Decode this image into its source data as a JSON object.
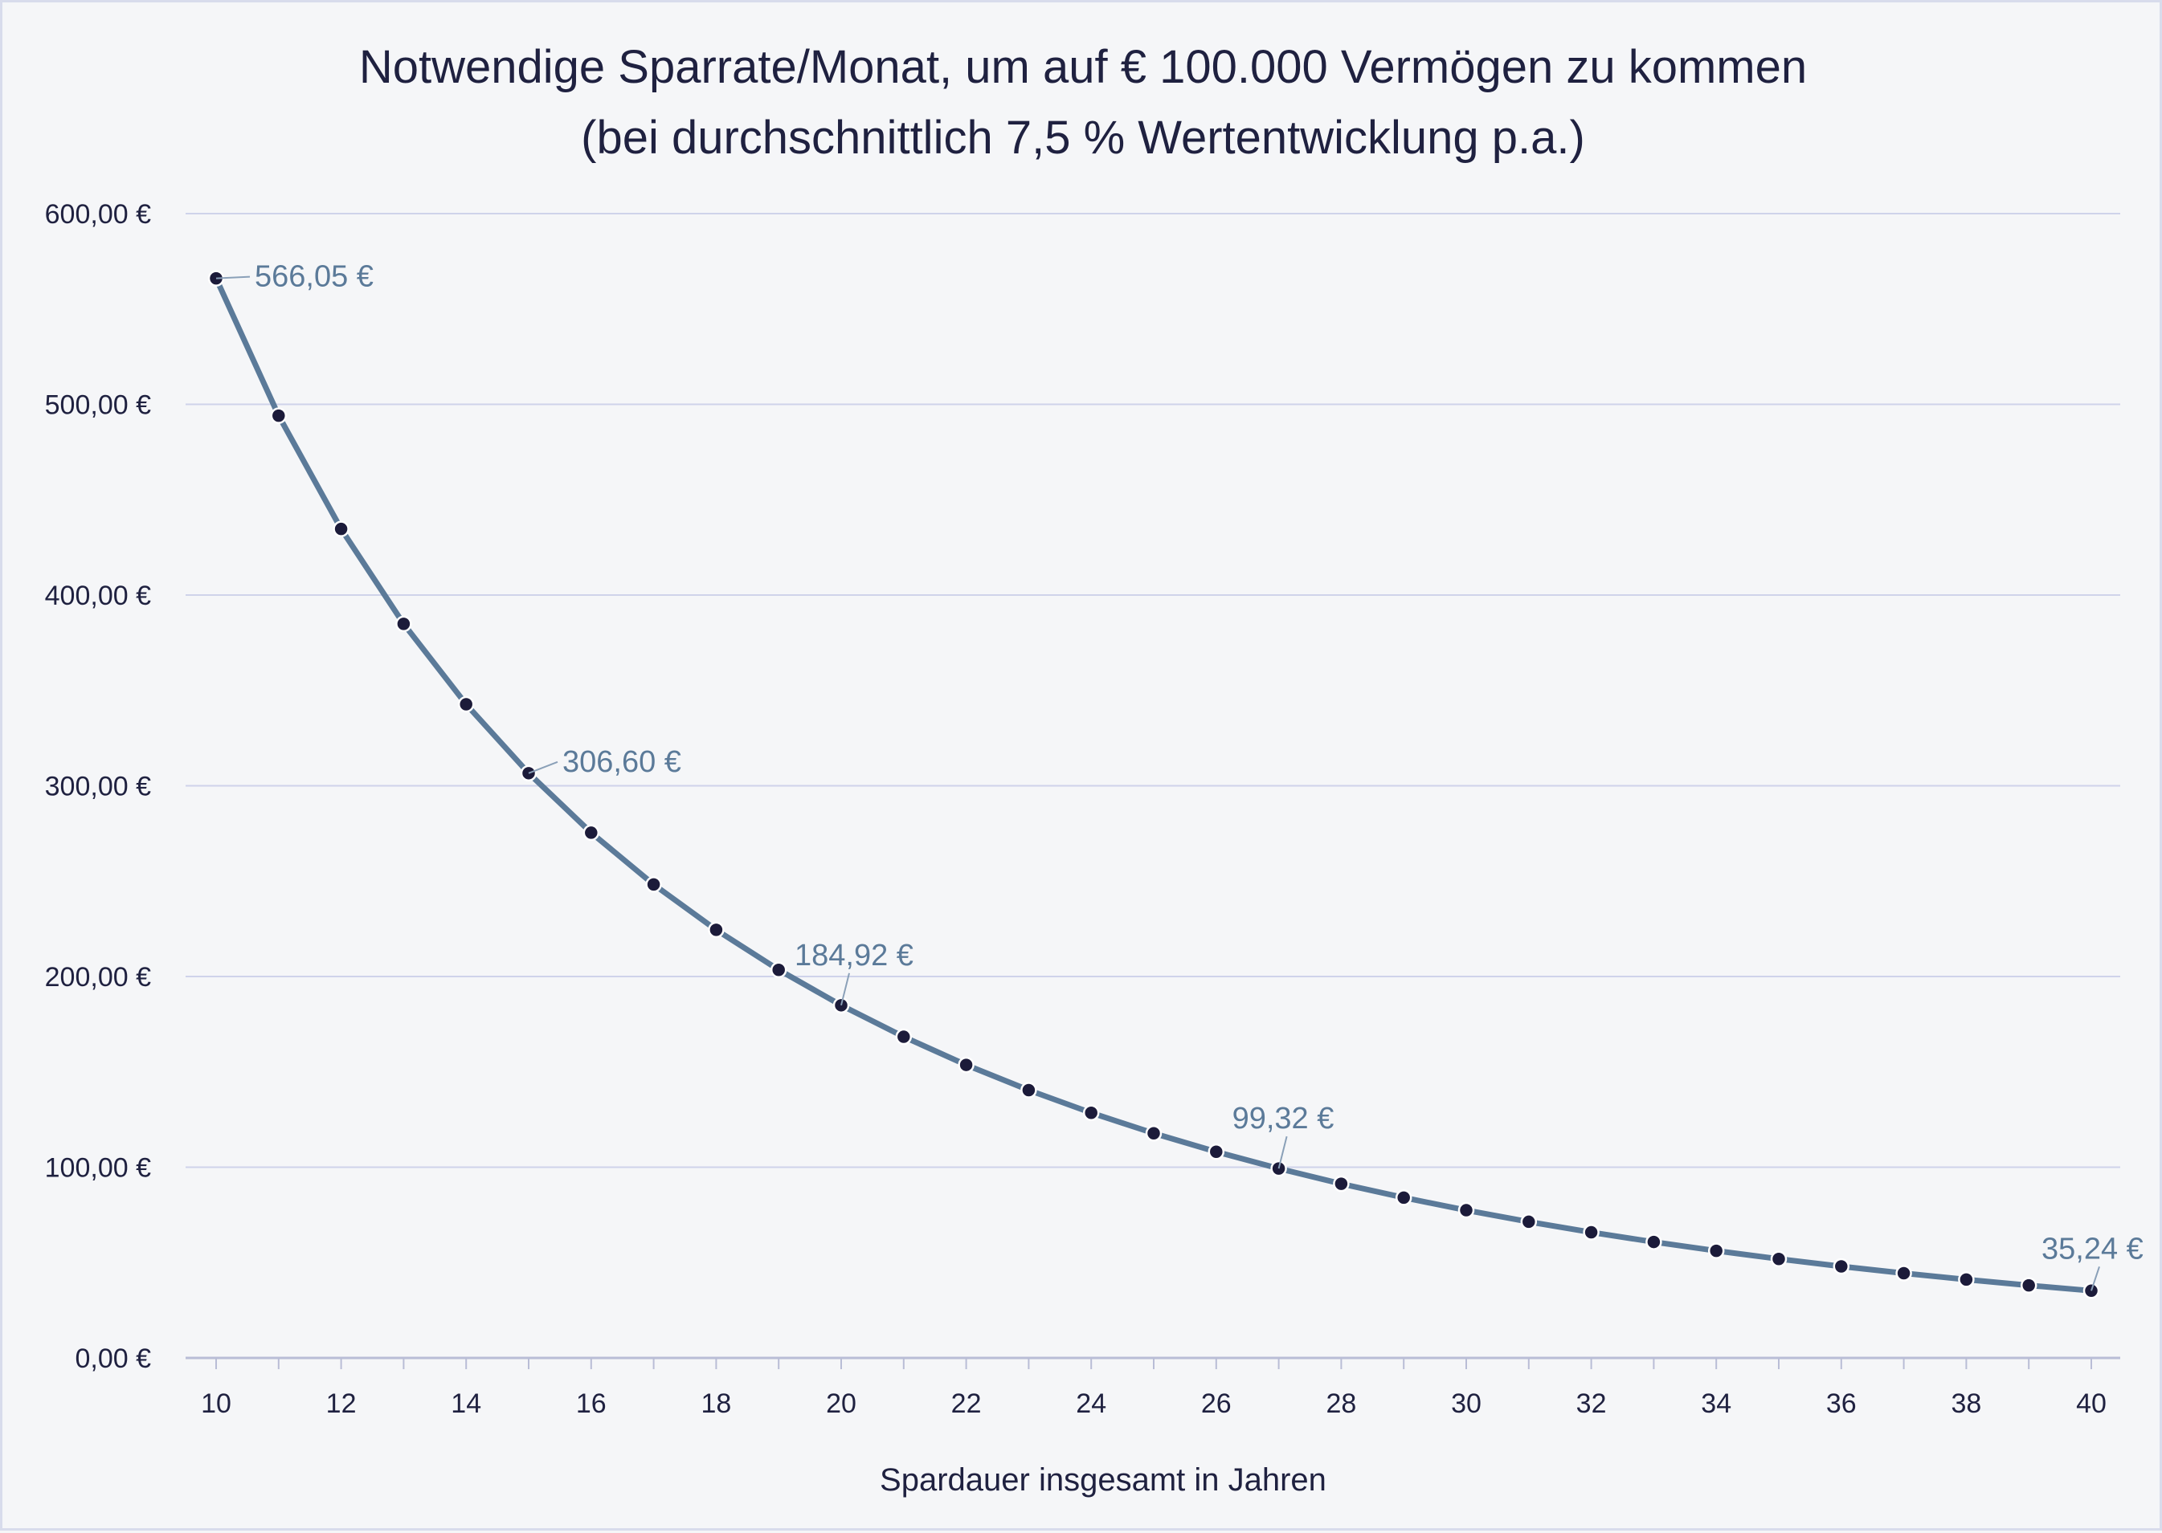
{
  "chart_data": {
    "type": "line",
    "title": "Notwendige Sparrate/Monat, um auf € 100.000 Vermögen zu kommen",
    "subtitle": "(bei durchschnittlich 7,5 % Wertentwicklung p.a.)",
    "xlabel": "Spardauer insgesamt in Jahren",
    "ylabel": "",
    "xlim": [
      10,
      40
    ],
    "ylim": [
      0,
      600
    ],
    "x_ticks": [
      "10",
      "12",
      "14",
      "16",
      "18",
      "20",
      "22",
      "24",
      "26",
      "28",
      "30",
      "32",
      "34",
      "36",
      "38",
      "40"
    ],
    "y_ticks": [
      "0,00 €",
      "100,00 €",
      "200,00 €",
      "300,00 €",
      "400,00 €",
      "500,00 €",
      "600,00 €"
    ],
    "grid": "horizontal",
    "line_color": "#5b7a99",
    "marker_color": "#1c1b3a",
    "x": [
      10,
      11,
      12,
      13,
      14,
      15,
      16,
      17,
      18,
      19,
      20,
      21,
      22,
      23,
      24,
      25,
      26,
      27,
      28,
      29,
      30,
      31,
      32,
      33,
      34,
      35,
      36,
      37,
      38,
      39,
      40
    ],
    "values": [
      566.05,
      494.07,
      434.66,
      384.89,
      342.72,
      306.6,
      275.4,
      248.25,
      224.46,
      203.49,
      184.92,
      168.4,
      153.65,
      140.42,
      128.53,
      117.8,
      108.1,
      99.32,
      91.33,
      84.07,
      77.45,
      71.4,
      65.87,
      60.81,
      56.17,
      51.91,
      48.0,
      44.41,
      41.1,
      38.05,
      35.24
    ],
    "data_labels": [
      {
        "x": 10,
        "text": "566,05 €"
      },
      {
        "x": 15,
        "text": "306,60 €"
      },
      {
        "x": 20,
        "text": "184,92 €"
      },
      {
        "x": 27,
        "text": "99,32 €"
      },
      {
        "x": 40,
        "text": "35,24 €"
      }
    ]
  }
}
